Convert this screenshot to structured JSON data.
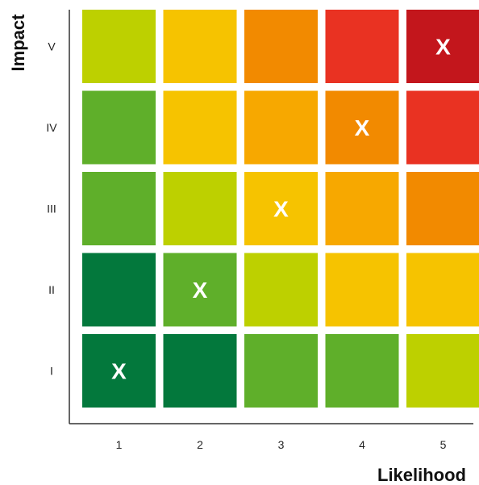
{
  "chart_data": {
    "type": "heatmap",
    "title": "",
    "xlabel": "Likelihood",
    "ylabel": "Impact",
    "x_categories": [
      "1",
      "2",
      "3",
      "4",
      "5"
    ],
    "y_categories": [
      "I",
      "II",
      "III",
      "IV",
      "V"
    ],
    "cell_colors": [
      [
        "#03783c",
        "#03783c",
        "#5faf2a",
        "#5faf2a",
        "#bdd000"
      ],
      [
        "#03783c",
        "#5faf2a",
        "#bdd000",
        "#f6c300",
        "#f6c300"
      ],
      [
        "#5faf2a",
        "#bdd000",
        "#f6c300",
        "#f7a800",
        "#f28a00"
      ],
      [
        "#5faf2a",
        "#f6c300",
        "#f7a800",
        "#f28a00",
        "#e93222"
      ],
      [
        "#bdd000",
        "#f6c300",
        "#f28a00",
        "#e93222",
        "#c3161c"
      ]
    ],
    "marks": [
      {
        "x": "1",
        "y": "I",
        "label": "X"
      },
      {
        "x": "2",
        "y": "II",
        "label": "X"
      },
      {
        "x": "3",
        "y": "III",
        "label": "X"
      },
      {
        "x": "4",
        "y": "IV",
        "label": "X"
      },
      {
        "x": "5",
        "y": "V",
        "label": "X"
      }
    ],
    "axis_color": "#333333",
    "mark_label_color": "#ffffff"
  }
}
